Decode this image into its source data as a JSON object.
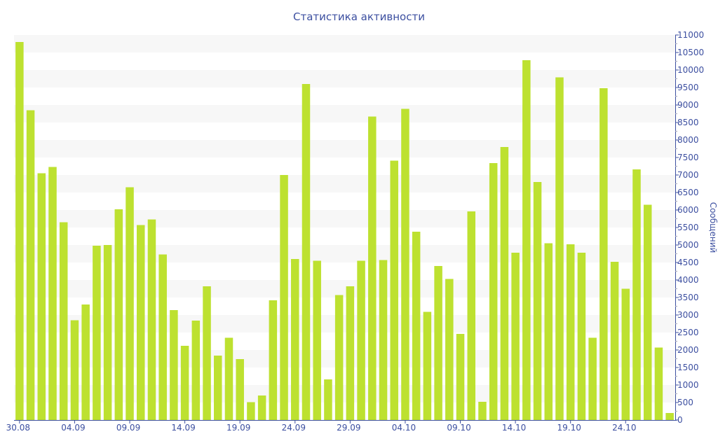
{
  "chart_data": {
    "type": "bar",
    "title": "Статистика активности",
    "ylabel": "Сообщений",
    "xlabel": "",
    "ylim": [
      0,
      11000
    ],
    "y_axis_side": "right",
    "y_ticks": [
      0,
      500,
      1000,
      1500,
      2000,
      2500,
      3000,
      3500,
      4000,
      4500,
      5000,
      5500,
      6000,
      6500,
      7000,
      7500,
      8000,
      8500,
      9000,
      9500,
      10000,
      10500,
      11000
    ],
    "x_tick_labels": [
      "30.08",
      "04.09",
      "09.09",
      "14.09",
      "19.09",
      "24.09",
      "29.09",
      "04.10",
      "09.10",
      "14.10",
      "19.10",
      "24.10"
    ],
    "categories": [
      "30.08",
      "31.08",
      "01.09",
      "02.09",
      "03.09",
      "04.09",
      "05.09",
      "06.09",
      "07.09",
      "08.09",
      "09.09",
      "10.09",
      "11.09",
      "12.09",
      "13.09",
      "14.09",
      "15.09",
      "16.09",
      "17.09",
      "18.09",
      "19.09",
      "20.09",
      "21.09",
      "22.09",
      "23.09",
      "24.09",
      "25.09",
      "26.09",
      "27.09",
      "28.09",
      "29.09",
      "30.09",
      "01.10",
      "02.10",
      "03.10",
      "04.10",
      "05.10",
      "06.10",
      "07.10",
      "08.10",
      "09.10",
      "10.10",
      "11.10",
      "12.10",
      "13.10",
      "14.10",
      "15.10",
      "16.10",
      "17.10",
      "18.10",
      "19.10",
      "20.10",
      "21.10",
      "22.10",
      "23.10",
      "24.10",
      "25.10",
      "26.10",
      "27.10",
      "28.10"
    ],
    "values": [
      10800,
      8850,
      7050,
      7230,
      5650,
      2850,
      3300,
      4980,
      5000,
      6020,
      6650,
      5570,
      5730,
      4730,
      3140,
      2120,
      2840,
      3820,
      1840,
      2350,
      1740,
      510,
      700,
      3420,
      7000,
      4600,
      9600,
      4550,
      1160,
      3570,
      3820,
      4550,
      8670,
      4570,
      7410,
      8890,
      5380,
      3090,
      4400,
      4030,
      2460,
      5960,
      520,
      7340,
      7800,
      4780,
      10280,
      6800,
      5050,
      9790,
      5020,
      4780,
      2350,
      9480,
      4520,
      3750,
      7160,
      6150,
      2070,
      200
    ],
    "grid": "alternating horizontal bands",
    "colors": {
      "bar": "#bde130",
      "axis": "#3c4fa0",
      "band": "#f7f7f7"
    }
  }
}
